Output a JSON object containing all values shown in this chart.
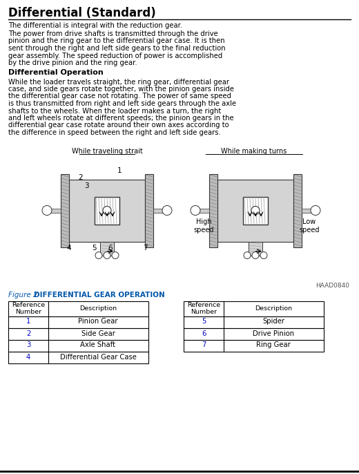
{
  "title": "Differential (Standard)",
  "para1": "The differential is integral with the reduction gear.",
  "para2_lines": [
    "The power from drive shafts is transmitted through the drive",
    "pinion and the ring gear to the differential gear case. It is then",
    "sent through the right and left side gears to the final reduction",
    "gear assembly. The speed reduction of power is accomplished",
    "by the drive pinion and the ring gear."
  ],
  "section_title": "Differential Operation",
  "para3_lines": [
    "While the loader travels straight, the ring gear, differential gear",
    "case, and side gears rotate together, with the pinion gears inside",
    "the differential gear case not rotating. The power of same speed",
    "is thus transmitted from right and left side gears through the axle",
    "shafts to the wheels. When the loader makes a turn, the right",
    "and left wheels rotate at different speeds; the pinion gears in the",
    "differential gear case rotate around their own axes according to",
    "the difference in speed between the right and left side gears."
  ],
  "diagram_label_left": "While traveling strait",
  "diagram_label_right": "While making turns",
  "diagram_note": "HAAD0840",
  "figure_caption_plain": "Figure 2  ",
  "figure_caption_bold": "DIFFERENTIAL GEAR OPERATION",
  "table1_rows": [
    [
      "1",
      "Pinion Gear"
    ],
    [
      "2",
      "Side Gear"
    ],
    [
      "3",
      "Axle Shaft"
    ],
    [
      "4",
      "Differential Gear Case"
    ]
  ],
  "table2_rows": [
    [
      "5",
      "Spider"
    ],
    [
      "6",
      "Drive Pinion"
    ],
    [
      "7",
      "Ring Gear"
    ]
  ],
  "bg_color": "#ffffff",
  "text_color": "#000000",
  "title_color": "#000000",
  "table_num_color": "#0000cc",
  "table_desc_color": "#000000",
  "caption_color": "#0055aa",
  "line_color": "#000000",
  "gear_fill": "#d4d4d4",
  "gear_dark": "#888888",
  "gear_line": "#333333",
  "haad_color": "#555555"
}
